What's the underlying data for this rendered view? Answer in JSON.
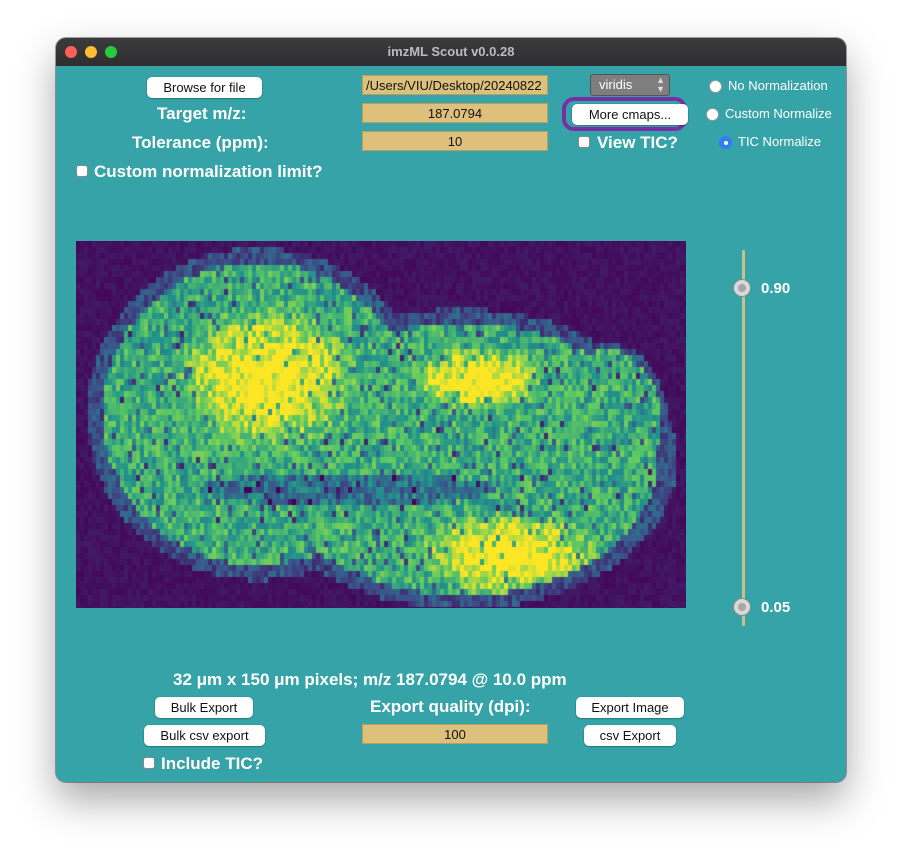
{
  "window": {
    "title": "imzML Scout v0.0.28"
  },
  "controls": {
    "browse_label": "Browse for file",
    "file_path": "/Users/VIU/Desktop/20240822",
    "target_label": "Target m/z:",
    "target_value": "187.0794",
    "tolerance_label": "Tolerance (ppm):",
    "tolerance_value": "10",
    "custom_norm_limit_label": "Custom normalization limit?",
    "colormap_selected": "viridis",
    "more_cmaps_label": "More cmaps...",
    "view_tic_label": "View TIC?",
    "normalization_options": [
      "No Normalization",
      "Custom Normalize",
      "TIC Normalize"
    ],
    "normalization_selected": "TIC Normalize"
  },
  "slider": {
    "max_label": "0.90",
    "min_label": "0.05",
    "max_value": 0.9,
    "min_value": 0.05
  },
  "footer": {
    "info_text": "32 μm x 150 μm pixels; m/z 187.0794 @ 10.0 ppm",
    "bulk_export_label": "Bulk Export",
    "bulk_csv_label": "Bulk csv export",
    "include_tic_label": "Include TIC?",
    "dpi_label": "Export quality (dpi):",
    "dpi_value": "100",
    "export_image_label": "Export Image",
    "csv_export_label": "csv Export"
  },
  "colors": {
    "background": "#35a3a7",
    "field": "#dcc07b",
    "accent": "#7a2ea6",
    "colormap_low": "#440154",
    "colormap_high": "#fde725"
  },
  "icons": [
    "close-light-icon",
    "minimize-light-icon",
    "zoom-light-icon",
    "chevron-updown-icon"
  ]
}
